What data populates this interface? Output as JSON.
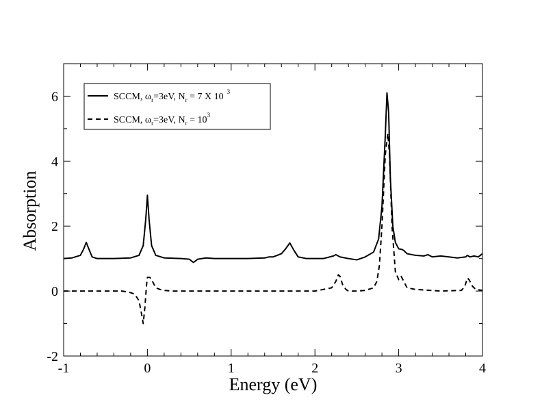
{
  "chart_data": {
    "type": "line",
    "title": "",
    "xlabel": "Energy (eV)",
    "ylabel": "Absorption",
    "xlim": [
      -1,
      4
    ],
    "ylim": [
      -2,
      7
    ],
    "x_ticks": [
      -1,
      0,
      1,
      2,
      3,
      4
    ],
    "x_tick_labels": [
      "-1",
      "0",
      "1",
      "2",
      "3",
      "4"
    ],
    "y_ticks": [
      -2,
      0,
      2,
      4,
      6
    ],
    "y_tick_labels": [
      "-2",
      "0",
      "2",
      "4",
      "6"
    ],
    "grid": false,
    "legend_position": "top-left",
    "legend": [
      {
        "style": "solid",
        "prefix": "SCCM,  ω",
        "sub1": "r",
        "mid": "=3eV, N",
        "sub2": "r",
        "suffix": " = 7 X 10",
        "sup": "3"
      },
      {
        "style": "dashed",
        "prefix": "SCCM,  ω",
        "sub1": "r",
        "mid": "=3eV, N",
        "sub2": "r",
        "suffix": " = 10",
        "sup": "3"
      }
    ],
    "series": [
      {
        "name": "SCCM, ωr=3eV, Nr = 7 X 10^3",
        "style": "solid",
        "x": [
          -1.0,
          -0.9,
          -0.8,
          -0.76,
          -0.73,
          -0.7,
          -0.66,
          -0.6,
          -0.4,
          -0.2,
          -0.1,
          -0.05,
          -0.02,
          0.0,
          0.02,
          0.05,
          0.1,
          0.2,
          0.4,
          0.5,
          0.55,
          0.6,
          0.7,
          0.8,
          1.0,
          1.2,
          1.4,
          1.45,
          1.5,
          1.6,
          1.65,
          1.7,
          1.75,
          1.8,
          1.9,
          2.1,
          2.22,
          2.25,
          2.3,
          2.4,
          2.5,
          2.6,
          2.7,
          2.76,
          2.8,
          2.84,
          2.86,
          2.88,
          2.9,
          2.93,
          2.96,
          3.0,
          3.04,
          3.06,
          3.1,
          3.2,
          3.3,
          3.35,
          3.4,
          3.5,
          3.6,
          3.7,
          3.8,
          3.82,
          3.85,
          3.9,
          3.95,
          4.0
        ],
        "values": [
          1.0,
          1.02,
          1.1,
          1.3,
          1.5,
          1.3,
          1.05,
          1.0,
          1.0,
          1.02,
          1.1,
          1.4,
          2.2,
          2.95,
          2.2,
          1.4,
          1.1,
          1.02,
          1.0,
          0.98,
          0.88,
          0.98,
          1.02,
          1.0,
          1.0,
          1.0,
          1.02,
          1.05,
          1.05,
          1.15,
          1.3,
          1.48,
          1.25,
          1.05,
          1.0,
          1.0,
          1.08,
          1.12,
          1.05,
          1.0,
          0.96,
          1.05,
          1.2,
          1.6,
          2.6,
          4.8,
          6.1,
          5.5,
          3.5,
          2.0,
          1.5,
          1.3,
          1.28,
          1.25,
          1.15,
          1.1,
          1.08,
          1.12,
          1.05,
          1.08,
          1.05,
          1.02,
          1.05,
          1.1,
          1.05,
          1.08,
          1.05,
          1.15
        ]
      },
      {
        "name": "SCCM, ωr=3eV, Nr = 10^3",
        "style": "dashed",
        "x": [
          -1.0,
          -0.5,
          -0.3,
          -0.2,
          -0.15,
          -0.1,
          -0.07,
          -0.05,
          -0.03,
          -0.01,
          0.0,
          0.03,
          0.06,
          0.1,
          0.15,
          0.2,
          0.3,
          0.5,
          0.8,
          1.2,
          1.6,
          2.0,
          2.2,
          2.25,
          2.28,
          2.3,
          2.33,
          2.37,
          2.4,
          2.5,
          2.6,
          2.7,
          2.74,
          2.77,
          2.8,
          2.84,
          2.87,
          2.89,
          2.92,
          2.96,
          3.0,
          3.03,
          3.06,
          3.1,
          3.2,
          3.5,
          3.75,
          3.79,
          3.82,
          3.84,
          3.88,
          3.92,
          4.0
        ],
        "values": [
          0.0,
          0.0,
          0.0,
          -0.05,
          -0.1,
          -0.3,
          -0.7,
          -1.0,
          -0.5,
          0.2,
          0.42,
          0.42,
          0.3,
          0.1,
          0.05,
          0.02,
          0.0,
          0.0,
          0.0,
          0.0,
          0.0,
          0.0,
          0.1,
          0.3,
          0.5,
          0.45,
          0.2,
          0.05,
          0.0,
          0.0,
          0.02,
          0.1,
          0.3,
          0.8,
          2.0,
          4.2,
          4.85,
          4.2,
          2.0,
          0.6,
          0.35,
          0.45,
          0.3,
          0.1,
          0.05,
          0.0,
          0.02,
          0.15,
          0.4,
          0.35,
          0.15,
          0.05,
          0.02
        ]
      }
    ]
  }
}
